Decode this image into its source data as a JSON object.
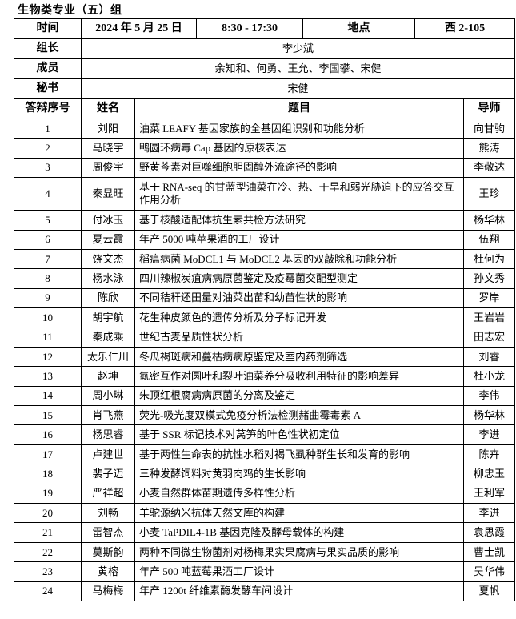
{
  "heading": "生物类专业（五）组",
  "info": {
    "time_label": "时间",
    "date": "2024 年 5 月 25 日",
    "hours": "8:30 - 17:30",
    "place_label": "地点",
    "place": "西 2-105",
    "leader_label": "组长",
    "leader": "李少斌",
    "members_label": "成员",
    "members": "余知和、何勇、王允、李国攀、宋健",
    "secretary_label": "秘书",
    "secretary": "宋健"
  },
  "columns": [
    "答辩序号",
    "姓名",
    "题目",
    "导师"
  ],
  "rows": [
    {
      "no": "1",
      "name": "刘阳",
      "topic": "油菜 LEAFY 基因家族的全基因组识别和功能分析",
      "advisor": "向甘驹"
    },
    {
      "no": "2",
      "name": "马晓宇",
      "topic": "鸭圆环病毒 Cap 基因的原核表达",
      "advisor": "熊涛"
    },
    {
      "no": "3",
      "name": "周俊宇",
      "topic": "野黄芩素对巨噬细胞胆固醇外流途径的影响",
      "advisor": "李敬达"
    },
    {
      "no": "4",
      "name": "秦显旺",
      "topic": "基于 RNA-seq 的甘蓝型油菜在冷、热、干旱和弱光胁迫下的应答交互作用分析",
      "advisor": "王珍"
    },
    {
      "no": "5",
      "name": "付冰玉",
      "topic": "基于核酸适配体抗生素共检方法研究",
      "advisor": "杨华林"
    },
    {
      "no": "6",
      "name": "夏云霞",
      "topic": "年产 5000 吨苹果酒的工厂设计",
      "advisor": "伍翔"
    },
    {
      "no": "7",
      "name": "饶文杰",
      "topic": "稻瘟病菌 MoDCL1 与 MoDCL2 基因的双敲除和功能分析",
      "advisor": "杜何为"
    },
    {
      "no": "8",
      "name": "杨水泳",
      "topic": "四川辣椒炭疽病病原菌鉴定及疫霉菌交配型测定",
      "advisor": "孙文秀"
    },
    {
      "no": "9",
      "name": "陈欣",
      "topic": "不同秸秆还田量对油菜出苗和幼苗性状的影响",
      "advisor": "罗岸"
    },
    {
      "no": "10",
      "name": "胡宇航",
      "topic": "花生种皮颜色的遗传分析及分子标记开发",
      "advisor": "王岩岩"
    },
    {
      "no": "11",
      "name": "秦成乘",
      "topic": "世纪古麦品质性状分析",
      "advisor": "田志宏"
    },
    {
      "no": "12",
      "name": "太乐仁川",
      "topic": "冬瓜褐斑病和蔓枯病病原鉴定及室内药剂筛选",
      "advisor": "刘睿"
    },
    {
      "no": "13",
      "name": "赵坤",
      "topic": "氮密互作对圆叶和裂叶油菜养分吸收利用特征的影响差异",
      "advisor": "杜小龙"
    },
    {
      "no": "14",
      "name": "周小琳",
      "topic": "朱顶红根腐病病原菌的分离及鉴定",
      "advisor": "李伟"
    },
    {
      "no": "15",
      "name": "肖飞燕",
      "topic": "荧光-吸光度双模式免疫分析法检测赭曲霉毒素 A",
      "advisor": "杨华林"
    },
    {
      "no": "16",
      "name": "杨思睿",
      "topic": "基于 SSR 标记技术对莴笋的叶色性状初定位",
      "advisor": "李进"
    },
    {
      "no": "17",
      "name": "卢建世",
      "topic": "基于两性生命表的抗性水稻对褐飞虱种群生长和发育的影响",
      "advisor": "陈卉"
    },
    {
      "no": "18",
      "name": "裴子迈",
      "topic": "三种发酵饲料对黄羽肉鸡的生长影响",
      "advisor": "柳忠玉"
    },
    {
      "no": "19",
      "name": "严祥超",
      "topic": "小麦自然群体苗期遗传多样性分析",
      "advisor": "王利军"
    },
    {
      "no": "20",
      "name": "刘畅",
      "topic": "羊驼源纳米抗体天然文库的构建",
      "advisor": "李进"
    },
    {
      "no": "21",
      "name": "雷智杰",
      "topic": "小麦 TaPDIL4-1B 基因克隆及酵母载体的构建",
      "advisor": "袁思霞"
    },
    {
      "no": "22",
      "name": "莫斯韵",
      "topic": "两种不同微生物菌剂对杨梅果实果腐病与果实品质的影响",
      "advisor": "曹士凯"
    },
    {
      "no": "23",
      "name": "黄榕",
      "topic": "年产 500 吨蓝莓果酒工厂设计",
      "advisor": "吴华伟"
    },
    {
      "no": "24",
      "name": "马梅梅",
      "topic": "年产 1200t 纤维素酶发酵车间设计",
      "advisor": "夏帆"
    }
  ]
}
